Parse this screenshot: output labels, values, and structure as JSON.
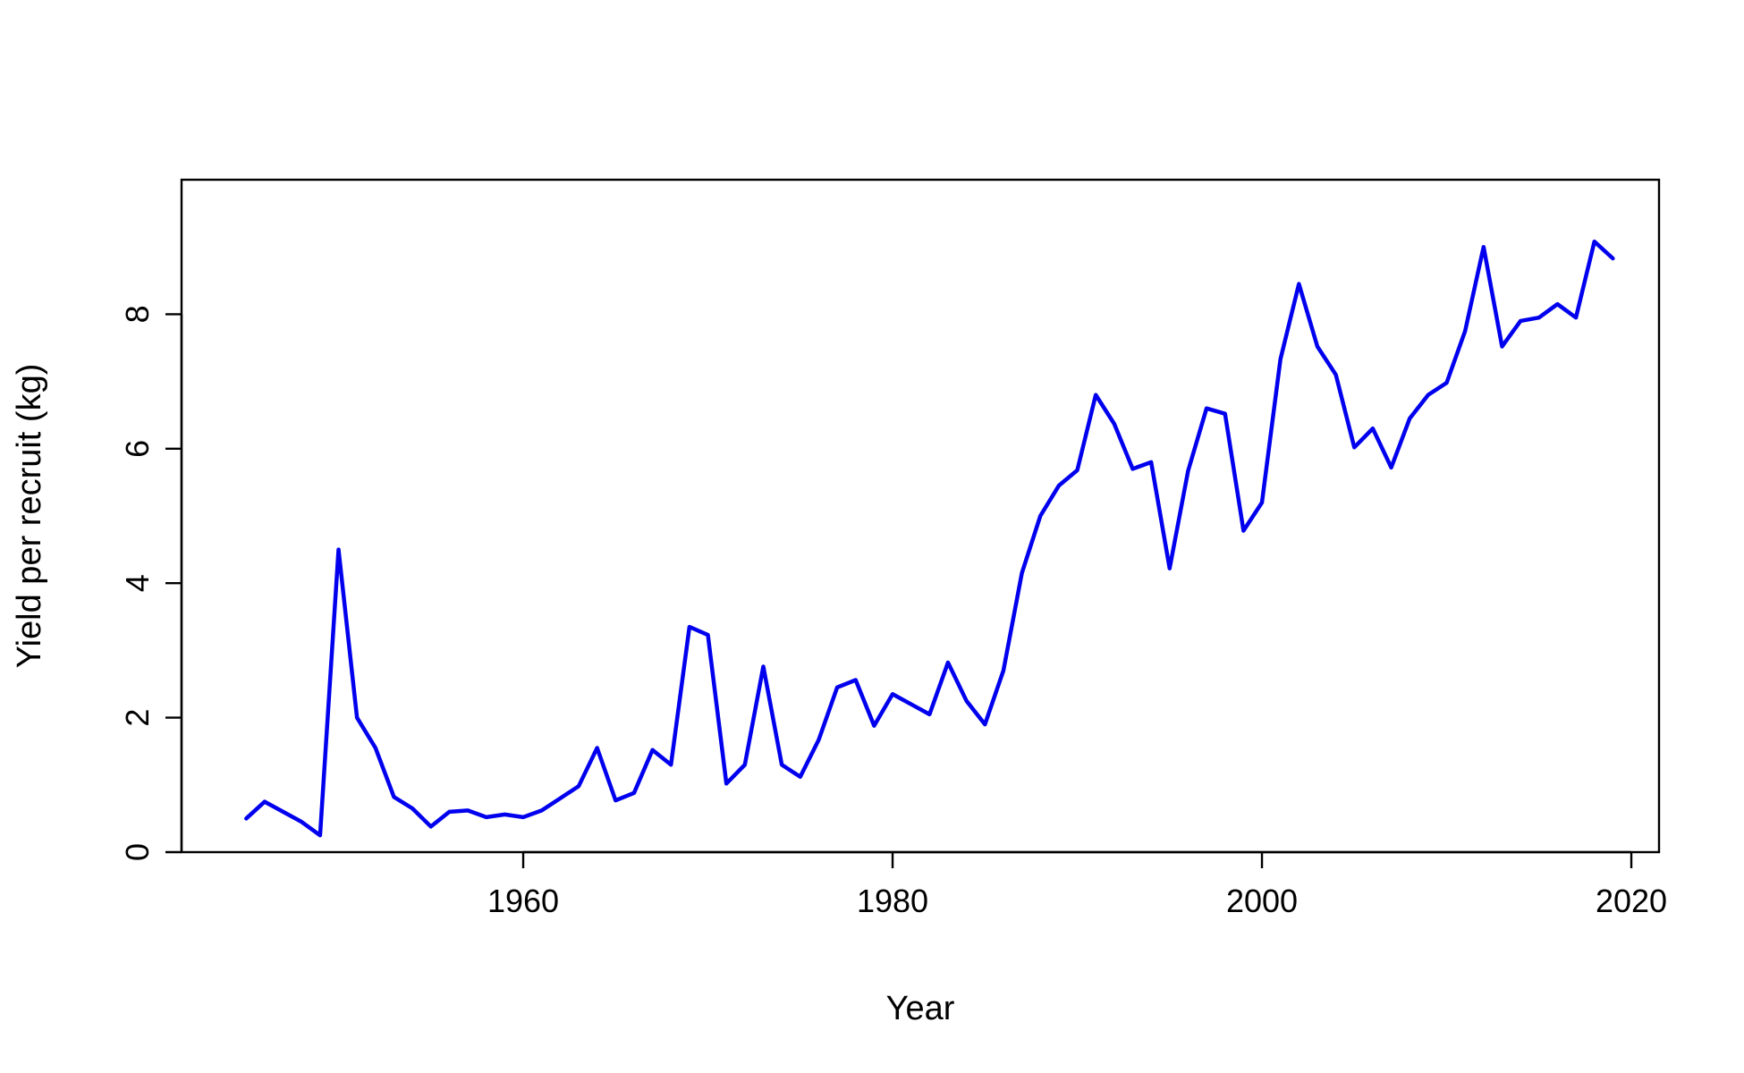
{
  "chart_data": {
    "type": "line",
    "title": "",
    "xlabel": "Year",
    "ylabel": "Yield per recruit (kg)",
    "xlim": [
      1941.5,
      2021.5
    ],
    "ylim": [
      0,
      10
    ],
    "x_ticks": [
      1960,
      1980,
      2000,
      2020
    ],
    "y_ticks": [
      0,
      2,
      4,
      6,
      8
    ],
    "grid": false,
    "legend": "none",
    "series": [
      {
        "color": "#0000ee",
        "x": [
          1945,
          1946,
          1947,
          1948,
          1949,
          1950,
          1951,
          1952,
          1953,
          1954,
          1955,
          1956,
          1957,
          1958,
          1959,
          1960,
          1961,
          1962,
          1963,
          1964,
          1965,
          1966,
          1967,
          1968,
          1969,
          1970,
          1971,
          1972,
          1973,
          1974,
          1975,
          1976,
          1977,
          1978,
          1979,
          1980,
          1981,
          1982,
          1983,
          1984,
          1985,
          1986,
          1987,
          1988,
          1989,
          1990,
          1991,
          1992,
          1993,
          1994,
          1995,
          1996,
          1997,
          1998,
          1999,
          2000,
          2001,
          2002,
          2003,
          2004,
          2005,
          2006,
          2007,
          2008,
          2009,
          2010,
          2011,
          2012,
          2013,
          2014,
          2015,
          2016,
          2017,
          2018,
          2019
        ],
        "y": [
          0.5,
          0.75,
          0.6,
          0.45,
          0.25,
          4.5,
          2.0,
          1.55,
          0.82,
          0.65,
          0.38,
          0.6,
          0.62,
          0.52,
          0.56,
          0.52,
          0.62,
          0.8,
          0.98,
          1.55,
          0.77,
          0.88,
          1.52,
          1.3,
          3.35,
          3.23,
          1.02,
          1.3,
          2.76,
          1.3,
          1.12,
          1.67,
          2.45,
          2.56,
          1.88,
          2.35,
          2.2,
          2.05,
          2.82,
          2.25,
          1.9,
          2.7,
          4.15,
          5.0,
          5.45,
          5.68,
          6.8,
          6.37,
          5.7,
          5.8,
          4.22,
          5.67,
          6.6,
          6.52,
          4.78,
          5.2,
          7.33,
          8.45,
          7.52,
          7.1,
          6.02,
          6.3,
          5.72,
          6.45,
          6.8,
          6.98,
          7.75,
          9.0,
          7.52,
          7.9,
          7.95,
          8.15,
          7.95,
          9.08,
          8.83
        ]
      }
    ]
  }
}
